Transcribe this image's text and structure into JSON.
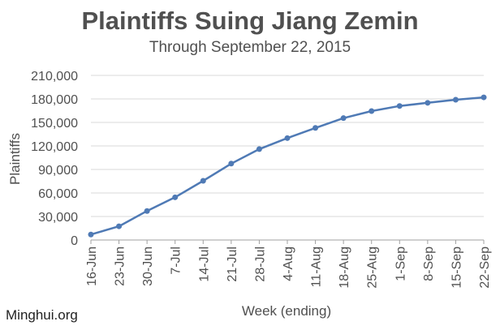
{
  "chart_data": {
    "type": "line",
    "title": "Plaintiffs Suing Jiang Zemin",
    "subtitle": "Through September 22, 2015",
    "xlabel": "Week (ending)",
    "ylabel": "Plaintiffs",
    "categories": [
      "16-Jun",
      "23-Jun",
      "30-Jun",
      "7-Jul",
      "14-Jul",
      "21-Jul",
      "28-Jul",
      "4-Aug",
      "11-Aug",
      "18-Aug",
      "25-Aug",
      "1-Sep",
      "8-Sep",
      "15-Sep",
      "22-Sep"
    ],
    "series": [
      {
        "values": [
          7000,
          17500,
          37000,
          54500,
          75500,
          97500,
          116000,
          130000,
          143000,
          155500,
          164500,
          171000,
          175000,
          179000,
          182000
        ]
      }
    ],
    "ylim": [
      0,
      210000
    ],
    "yticks": [
      0,
      30000,
      60000,
      90000,
      120000,
      150000,
      180000,
      210000
    ],
    "ytick_labels": [
      "0",
      "30,000",
      "60,000",
      "90,000",
      "120,000",
      "150,000",
      "180,000",
      "210,000"
    ],
    "grid": true,
    "line_color": "#4f7ab5",
    "grid_color": "#d9d9d9",
    "axis_color": "#a0a0a0",
    "text_color": "#505050"
  },
  "credit": "Minghui.org"
}
